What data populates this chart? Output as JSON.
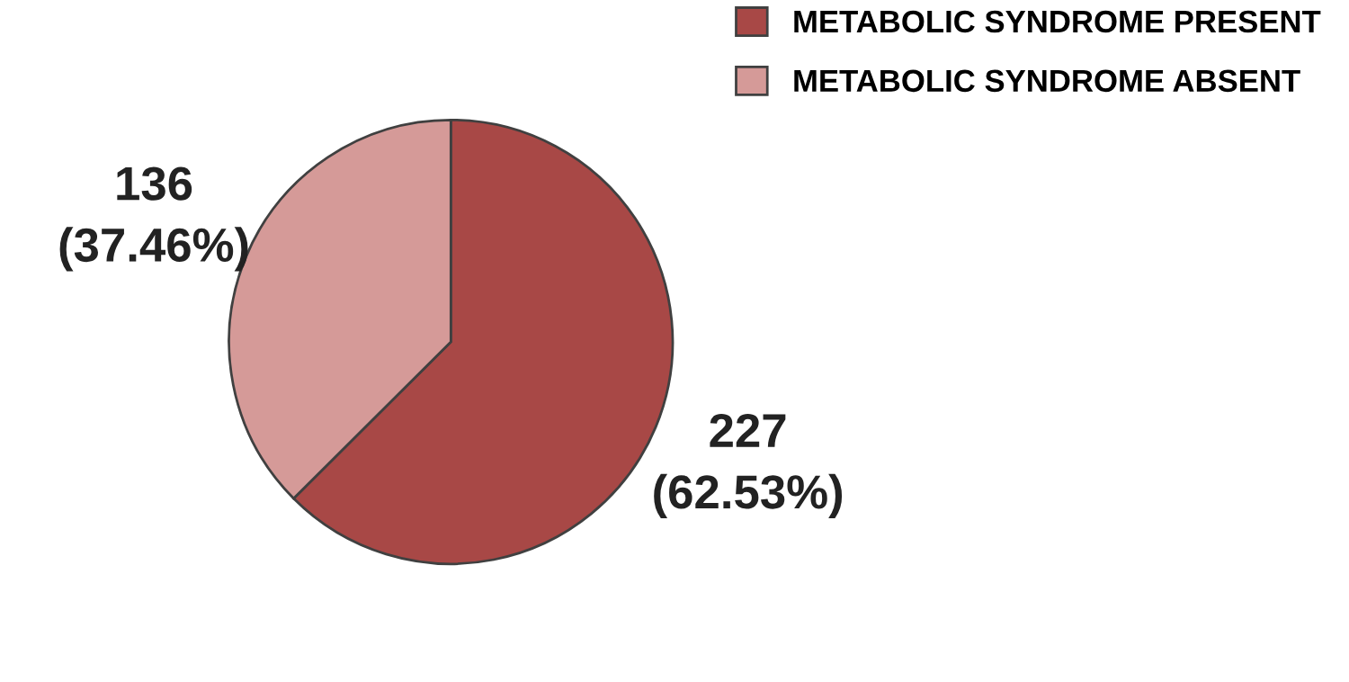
{
  "chart_data": {
    "type": "pie",
    "categories": [
      "METABOLIC SYNDROME PRESENT",
      "METABOLIC SYNDROME ABSENT"
    ],
    "values": [
      62.53,
      37.46
    ],
    "value_labels": [
      "227\n(62.53%)",
      "136\n(37.46%)"
    ],
    "colors": [
      "#a84846",
      "#d59a98"
    ],
    "legend": "top right"
  }
}
